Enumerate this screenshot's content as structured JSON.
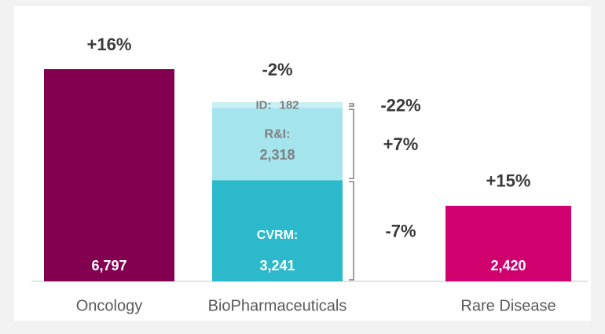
{
  "chart_data": {
    "type": "bar",
    "categories": [
      "Oncology",
      "BioPharmaceuticals",
      "Rare Disease"
    ],
    "values": [
      6797,
      null,
      2420
    ],
    "value_labels": [
      "6,797",
      null,
      "2,420"
    ],
    "colors": [
      "#830051",
      null,
      "#d0006f"
    ],
    "growth_labels": [
      "+16%",
      "-2%",
      "+15%"
    ],
    "segments": [
      {
        "name": "CVRM:",
        "value": 3241,
        "value_label": "3,241",
        "growth_label": "-7%",
        "color": "#2cb9cb"
      },
      {
        "name": "R&I:",
        "value": 2318,
        "value_label": "2,318",
        "growth_label": "+7%",
        "color": "#a4e4ed"
      },
      {
        "name": "ID:",
        "value": 182,
        "value_label": "182",
        "growth_label": "-22%",
        "color": "#c8eff4"
      }
    ],
    "stacked_category": 1
  }
}
